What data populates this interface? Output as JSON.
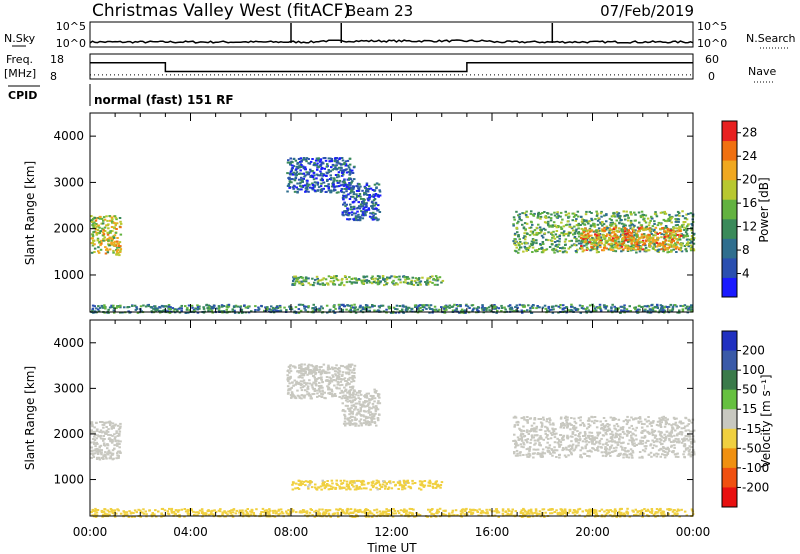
{
  "header": {
    "title": "Christmas Valley West (fitACF)",
    "beam": "Beam 23",
    "date": "07/Feb/2019"
  },
  "labels": {
    "nsky": "N.Sky",
    "nsearch": "N.Search",
    "freq": "Freq.",
    "mhz": "[MHz]",
    "nave": "Nave",
    "cpid": "CPID",
    "cpid_value": "normal (fast) 151 RF",
    "nsky_ticks": [
      "10^5",
      "10^0"
    ],
    "nsearch_ticks": [
      "10^5",
      "10^0"
    ],
    "freq_ticks": [
      "18",
      "8"
    ],
    "nave_ticks": [
      "60",
      "0"
    ]
  },
  "colors": {
    "power_scale": [
      "#1a1aff",
      "#2a4fb0",
      "#2f6e8e",
      "#3a8a5a",
      "#62b240",
      "#b8c830",
      "#f0a820",
      "#f07010",
      "#e82020"
    ],
    "velocity_scale": [
      "#2030c0",
      "#3a5aa8",
      "#3a7a4a",
      "#66c040",
      "#c8c8c0",
      "#f0d040",
      "#f09010",
      "#f05010",
      "#e81010"
    ]
  },
  "chart_data": [
    {
      "type": "line",
      "name": "summary",
      "x": [
        "00:00",
        "04:00",
        "08:00",
        "12:00",
        "16:00",
        "20:00",
        "00:00"
      ],
      "freq_series": [
        {
          "name": "Freq.",
          "segments": [
            [
              0,
              3,
              14.5
            ],
            [
              3,
              15,
              11
            ],
            [
              15,
              24,
              14.5
            ]
          ]
        }
      ],
      "nave_series": [
        {
          "name": "Nave",
          "level": 10
        }
      ],
      "nsky_spikes_hours": [
        8.0,
        10.0,
        18.4
      ]
    },
    {
      "type": "heatmap",
      "name": "power",
      "xlabel": "Time UT",
      "ylabel": "Slant Range [km]",
      "xlim": [
        0,
        24
      ],
      "ylim": [
        200,
        4500
      ],
      "x_ticks": [
        "00:00",
        "04:00",
        "08:00",
        "12:00",
        "16:00",
        "20:00",
        "00:00"
      ],
      "y_ticks": [
        1000,
        2000,
        3000,
        4000
      ],
      "colorbar": {
        "label": "Power [dB]",
        "ticks": [
          4,
          8,
          12,
          16,
          20,
          24,
          28
        ],
        "range": [
          0,
          30
        ]
      },
      "regions": [
        {
          "t0": 0.0,
          "t1": 1.2,
          "r0": 1450,
          "r1": 2300,
          "level": 18
        },
        {
          "t0": 7.8,
          "t1": 10.5,
          "r0": 2800,
          "r1": 3550,
          "level": 6
        },
        {
          "t0": 10.0,
          "t1": 11.5,
          "r0": 2200,
          "r1": 3000,
          "level": 6
        },
        {
          "t0": 8.0,
          "t1": 14.0,
          "r0": 800,
          "r1": 1000,
          "level": 14
        },
        {
          "t0": 16.8,
          "t1": 24.0,
          "r0": 1500,
          "r1": 2400,
          "level": 14
        },
        {
          "t0": 19.5,
          "t1": 23.5,
          "r0": 1550,
          "r1": 2050,
          "level": 22
        },
        {
          "t0": 0.0,
          "t1": 24.0,
          "r0": 200,
          "r1": 380,
          "level": 10
        }
      ]
    },
    {
      "type": "heatmap",
      "name": "velocity",
      "xlabel": "Time UT",
      "ylabel": "Slant Range [km]",
      "xlim": [
        0,
        24
      ],
      "ylim": [
        200,
        4500
      ],
      "x_ticks": [
        "00:00",
        "04:00",
        "08:00",
        "12:00",
        "16:00",
        "20:00",
        "00:00"
      ],
      "y_ticks": [
        1000,
        2000,
        3000,
        4000
      ],
      "colorbar": {
        "label": "Velocity [m s⁻¹]",
        "ticks": [
          200,
          100,
          50,
          15,
          -15,
          -50,
          -100,
          -200
        ]
      },
      "regions": [
        {
          "t0": 0.0,
          "t1": 1.2,
          "r0": 1450,
          "r1": 2300,
          "level": 0
        },
        {
          "t0": 7.8,
          "t1": 10.5,
          "r0": 2800,
          "r1": 3550,
          "level": 0
        },
        {
          "t0": 10.0,
          "t1": 11.5,
          "r0": 2200,
          "r1": 3000,
          "level": 0
        },
        {
          "t0": 8.0,
          "t1": 14.0,
          "r0": 800,
          "r1": 1000,
          "level": -20
        },
        {
          "t0": 16.8,
          "t1": 24.0,
          "r0": 1500,
          "r1": 2400,
          "level": 0
        },
        {
          "t0": 0.0,
          "t1": 24.0,
          "r0": 200,
          "r1": 380,
          "level": -40
        }
      ]
    }
  ]
}
